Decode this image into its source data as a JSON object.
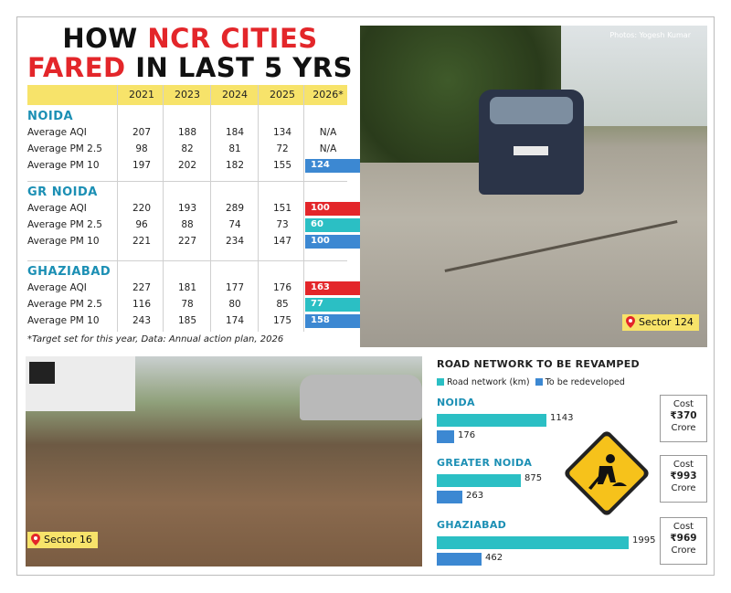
{
  "title": {
    "line1_black": "HOW ",
    "line1_red": "NCR CITIES",
    "line2_red": "FARED",
    "line2_black": " IN LAST 5 YRS"
  },
  "photo_credit": "Photos: Yogesh Kumar",
  "footnote": "*Target set for this year, Data: Annual action plan, 2026",
  "locations": {
    "top": "Sector 124",
    "bottom": "Sector 16"
  },
  "colors": {
    "aqi_bar": "#e3262a",
    "pm25_bar": "#2bbfc4",
    "pm10_bar": "#3c88d2",
    "city_label": "#1b8fb4",
    "header_band": "#f7e36a",
    "road_network": "#2bbfc4",
    "to_redevelop": "#3c88d2"
  },
  "chart_data": [
    {
      "type": "table",
      "title": "HOW NCR CITIES FARED IN LAST 5 YRS",
      "columns": [
        "2021",
        "2023",
        "2024",
        "2025",
        "2026*"
      ],
      "cities": [
        {
          "name": "NOIDA",
          "rows": [
            {
              "metric": "Average AQI",
              "values": [
                "207",
                "188",
                "184",
                "134",
                "N/A"
              ]
            },
            {
              "metric": "Average PM 2.5",
              "values": [
                "98",
                "82",
                "81",
                "72",
                "N/A"
              ]
            },
            {
              "metric": "Average PM 10",
              "values": [
                "197",
                "202",
                "182",
                "155",
                "124"
              ]
            }
          ]
        },
        {
          "name": "GR NOIDA",
          "rows": [
            {
              "metric": "Average AQI",
              "values": [
                "220",
                "193",
                "289",
                "151",
                "100"
              ]
            },
            {
              "metric": "Average PM 2.5",
              "values": [
                "96",
                "88",
                "74",
                "73",
                "60"
              ]
            },
            {
              "metric": "Average PM 10",
              "values": [
                "221",
                "227",
                "234",
                "147",
                "100"
              ]
            }
          ]
        },
        {
          "name": "GHAZIABAD",
          "rows": [
            {
              "metric": "Average AQI",
              "values": [
                "227",
                "181",
                "177",
                "176",
                "163"
              ]
            },
            {
              "metric": "Average PM 2.5",
              "values": [
                "116",
                "78",
                "80",
                "85",
                "77"
              ]
            },
            {
              "metric": "Average PM 10",
              "values": [
                "243",
                "185",
                "174",
                "175",
                "158"
              ]
            }
          ]
        }
      ]
    },
    {
      "type": "bar",
      "title": "ROAD NETWORK TO BE REVAMPED",
      "legend": [
        "Road network (km)",
        "To be redeveloped"
      ],
      "cost_label": "Cost",
      "cost_unit": "Crore",
      "cities": [
        {
          "name": "NOIDA",
          "road_network": 1143,
          "to_be_redeveloped": 176,
          "cost": "₹370"
        },
        {
          "name": "GREATER NOIDA",
          "road_network": 875,
          "to_be_redeveloped": 263,
          "cost": "₹993"
        },
        {
          "name": "GHAZIABAD",
          "road_network": 1995,
          "to_be_redeveloped": 462,
          "cost": "₹969"
        }
      ]
    }
  ]
}
